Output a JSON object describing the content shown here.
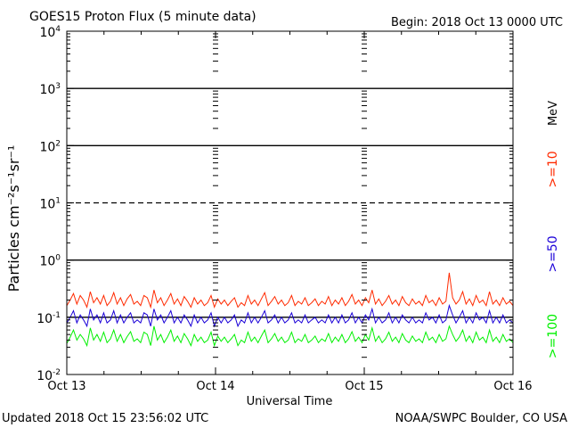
{
  "chart_data": {
    "type": "line",
    "title": "GOES15 Proton Flux (5 minute data)",
    "begin": "Begin: 2018 Oct 13 0000 UTC",
    "ylabel": "Particles cm⁻²s⁻¹sr⁻¹",
    "xlabel": "Universal Time",
    "updated": "Updated 2018 Oct 15 23:56:02 UTC",
    "source": "NOAA/SWPC Boulder, CO USA",
    "unit_label": "MeV",
    "y_scale": "log",
    "ylim": [
      0.01,
      10000
    ],
    "xlim": [
      0,
      3
    ],
    "x_ticks": [
      {
        "x": 0,
        "label": "Oct 13"
      },
      {
        "x": 1,
        "label": "Oct 14"
      },
      {
        "x": 2,
        "label": "Oct 15"
      },
      {
        "x": 3,
        "label": "Oct 16"
      }
    ],
    "y_ticks": [
      {
        "exp": -2,
        "base": "10",
        "sup": "-2"
      },
      {
        "exp": -1,
        "base": "10",
        "sup": "-1"
      },
      {
        "exp": 0,
        "base": "10",
        "sup": "0"
      },
      {
        "exp": 1,
        "base": "10",
        "sup": "1"
      },
      {
        "exp": 2,
        "base": "10",
        "sup": "2"
      },
      {
        "exp": 3,
        "base": "10",
        "sup": "3"
      },
      {
        "exp": 4,
        "base": "10",
        "sup": "4"
      }
    ],
    "threshold_lines": [
      {
        "value": 1000,
        "style": "solid"
      },
      {
        "value": 100,
        "style": "solid"
      },
      {
        "value": 10,
        "style": "dashed"
      },
      {
        "value": 1,
        "style": "solid"
      },
      {
        "value": 0.1,
        "style": "solid"
      }
    ],
    "grid": false,
    "legend_placement": "right-vertical",
    "series": [
      {
        "name": ">=10",
        "color": "#ff2a00",
        "values": [
          0.16,
          0.2,
          0.26,
          0.17,
          0.24,
          0.2,
          0.15,
          0.28,
          0.18,
          0.22,
          0.17,
          0.24,
          0.16,
          0.19,
          0.27,
          0.17,
          0.22,
          0.16,
          0.21,
          0.25,
          0.17,
          0.19,
          0.16,
          0.24,
          0.22,
          0.15,
          0.3,
          0.18,
          0.22,
          0.16,
          0.2,
          0.26,
          0.17,
          0.21,
          0.16,
          0.23,
          0.19,
          0.15,
          0.22,
          0.17,
          0.2,
          0.16,
          0.18,
          0.24,
          0.15,
          0.21,
          0.17,
          0.2,
          0.16,
          0.19,
          0.22,
          0.15,
          0.18,
          0.16,
          0.24,
          0.17,
          0.2,
          0.16,
          0.21,
          0.27,
          0.16,
          0.19,
          0.23,
          0.17,
          0.2,
          0.16,
          0.18,
          0.24,
          0.16,
          0.19,
          0.17,
          0.22,
          0.16,
          0.18,
          0.21,
          0.16,
          0.19,
          0.17,
          0.23,
          0.16,
          0.2,
          0.17,
          0.22,
          0.16,
          0.19,
          0.25,
          0.17,
          0.2,
          0.16,
          0.22,
          0.18,
          0.3,
          0.17,
          0.21,
          0.16,
          0.19,
          0.24,
          0.17,
          0.2,
          0.16,
          0.23,
          0.18,
          0.16,
          0.21,
          0.17,
          0.19,
          0.16,
          0.24,
          0.18,
          0.2,
          0.16,
          0.22,
          0.17,
          0.19,
          0.6,
          0.22,
          0.17,
          0.2,
          0.28,
          0.17,
          0.21,
          0.16,
          0.24,
          0.18,
          0.2,
          0.16,
          0.28,
          0.17,
          0.2,
          0.16,
          0.22,
          0.17,
          0.19,
          0.16
        ]
      },
      {
        "name": ">=50",
        "color": "#1a00d8",
        "values": [
          0.08,
          0.1,
          0.13,
          0.08,
          0.11,
          0.09,
          0.07,
          0.14,
          0.09,
          0.11,
          0.08,
          0.12,
          0.08,
          0.09,
          0.13,
          0.08,
          0.11,
          0.08,
          0.1,
          0.12,
          0.08,
          0.09,
          0.08,
          0.12,
          0.11,
          0.07,
          0.14,
          0.09,
          0.11,
          0.08,
          0.1,
          0.13,
          0.08,
          0.1,
          0.08,
          0.11,
          0.09,
          0.07,
          0.11,
          0.08,
          0.1,
          0.08,
          0.09,
          0.12,
          0.07,
          0.1,
          0.08,
          0.1,
          0.08,
          0.09,
          0.11,
          0.07,
          0.09,
          0.08,
          0.12,
          0.08,
          0.1,
          0.08,
          0.1,
          0.13,
          0.08,
          0.09,
          0.11,
          0.08,
          0.1,
          0.08,
          0.09,
          0.12,
          0.08,
          0.09,
          0.08,
          0.11,
          0.08,
          0.09,
          0.1,
          0.08,
          0.09,
          0.08,
          0.11,
          0.08,
          0.1,
          0.08,
          0.11,
          0.08,
          0.09,
          0.12,
          0.08,
          0.1,
          0.08,
          0.11,
          0.09,
          0.14,
          0.08,
          0.1,
          0.08,
          0.09,
          0.12,
          0.08,
          0.1,
          0.08,
          0.11,
          0.09,
          0.08,
          0.1,
          0.08,
          0.09,
          0.08,
          0.12,
          0.09,
          0.1,
          0.08,
          0.11,
          0.08,
          0.09,
          0.16,
          0.11,
          0.08,
          0.1,
          0.13,
          0.08,
          0.1,
          0.08,
          0.12,
          0.09,
          0.1,
          0.08,
          0.13,
          0.08,
          0.1,
          0.08,
          0.11,
          0.08,
          0.09,
          0.08
        ]
      },
      {
        "name": ">=100",
        "color": "#00f000",
        "values": [
          0.035,
          0.045,
          0.06,
          0.04,
          0.05,
          0.042,
          0.032,
          0.065,
          0.04,
          0.05,
          0.038,
          0.055,
          0.036,
          0.042,
          0.06,
          0.038,
          0.05,
          0.036,
          0.046,
          0.056,
          0.038,
          0.042,
          0.036,
          0.055,
          0.05,
          0.032,
          0.07,
          0.04,
          0.05,
          0.036,
          0.045,
          0.06,
          0.038,
          0.047,
          0.036,
          0.052,
          0.042,
          0.032,
          0.05,
          0.038,
          0.045,
          0.036,
          0.04,
          0.055,
          0.032,
          0.047,
          0.038,
          0.045,
          0.036,
          0.042,
          0.05,
          0.032,
          0.04,
          0.036,
          0.055,
          0.038,
          0.045,
          0.036,
          0.047,
          0.06,
          0.036,
          0.042,
          0.052,
          0.038,
          0.045,
          0.036,
          0.04,
          0.055,
          0.036,
          0.042,
          0.038,
          0.05,
          0.036,
          0.04,
          0.047,
          0.036,
          0.042,
          0.038,
          0.052,
          0.036,
          0.045,
          0.038,
          0.05,
          0.036,
          0.042,
          0.056,
          0.038,
          0.045,
          0.036,
          0.05,
          0.04,
          0.065,
          0.038,
          0.047,
          0.036,
          0.042,
          0.055,
          0.038,
          0.045,
          0.036,
          0.052,
          0.04,
          0.036,
          0.047,
          0.038,
          0.042,
          0.036,
          0.055,
          0.04,
          0.045,
          0.036,
          0.05,
          0.038,
          0.042,
          0.07,
          0.05,
          0.038,
          0.045,
          0.06,
          0.038,
          0.047,
          0.036,
          0.055,
          0.04,
          0.045,
          0.036,
          0.06,
          0.038,
          0.045,
          0.036,
          0.05,
          0.038,
          0.042,
          0.036
        ]
      }
    ]
  }
}
